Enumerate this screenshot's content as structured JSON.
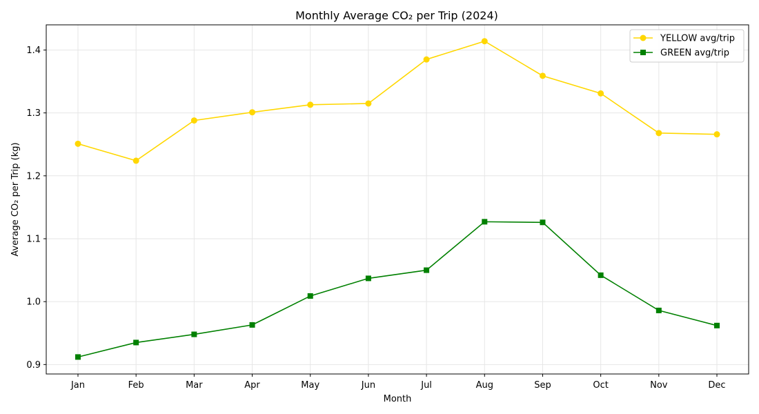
{
  "chart_data": {
    "type": "line",
    "title": "Monthly Average CO₂ per Trip (2024)",
    "xlabel": "Month",
    "ylabel": "Average CO₂ per Trip (kg)",
    "categories": [
      "Jan",
      "Feb",
      "Mar",
      "Apr",
      "May",
      "Jun",
      "Jul",
      "Aug",
      "Sep",
      "Oct",
      "Nov",
      "Dec"
    ],
    "ylim": [
      0.885,
      1.44
    ],
    "yticks": [
      0.9,
      1.0,
      1.1,
      1.2,
      1.3,
      1.4
    ],
    "ytick_labels": [
      "0.9",
      "1.0",
      "1.1",
      "1.2",
      "1.3",
      "1.4"
    ],
    "grid": true,
    "legend_position": "top-right",
    "series": [
      {
        "name": "YELLOW avg/trip",
        "color": "#FFD700",
        "marker": "circle",
        "values": [
          1.251,
          1.224,
          1.288,
          1.301,
          1.313,
          1.315,
          1.385,
          1.414,
          1.359,
          1.331,
          1.268,
          1.266
        ]
      },
      {
        "name": "GREEN avg/trip",
        "color": "#008000",
        "marker": "square",
        "values": [
          0.912,
          0.935,
          0.948,
          0.963,
          1.009,
          1.037,
          1.05,
          1.127,
          1.126,
          1.042,
          0.986,
          0.962
        ]
      }
    ]
  }
}
